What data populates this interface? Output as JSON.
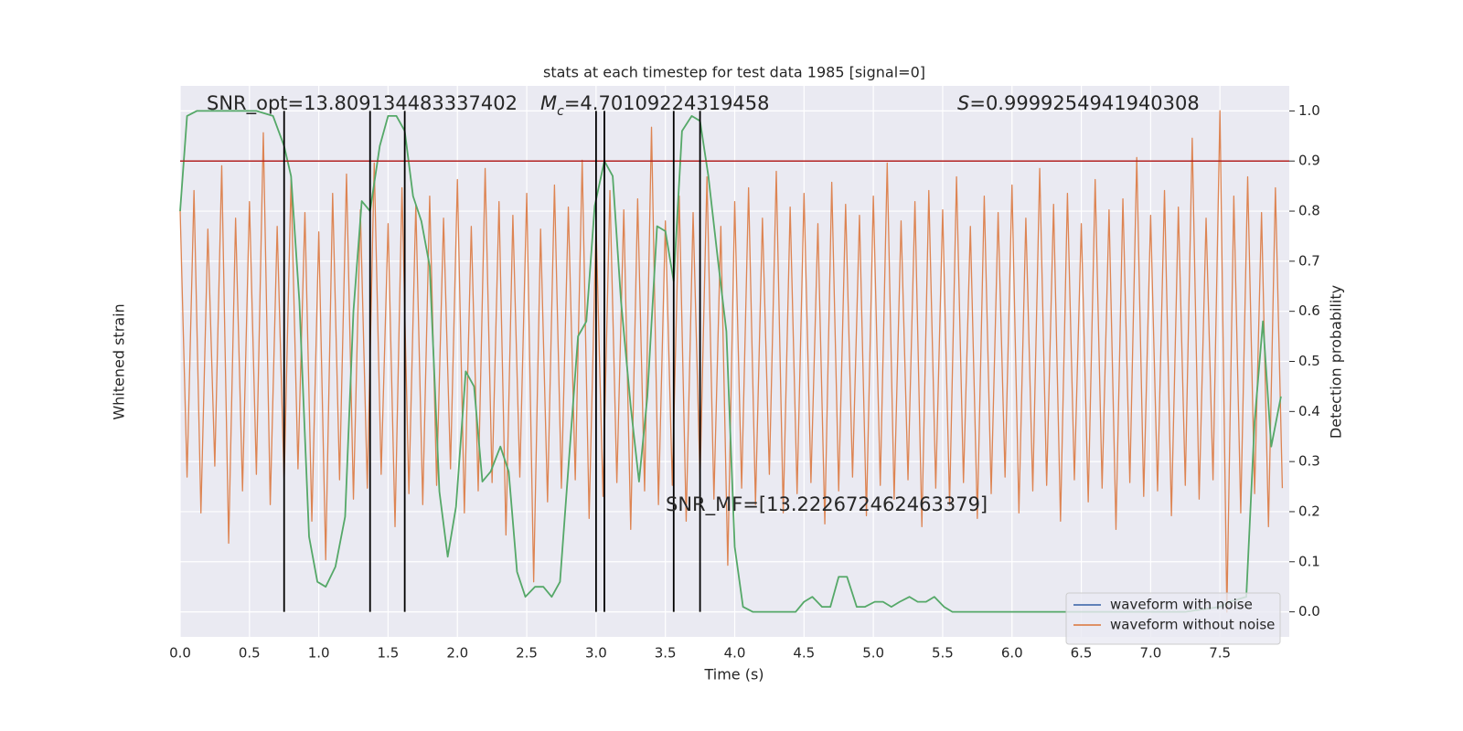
{
  "chart_data": {
    "type": "line",
    "title": "stats at each timestep for test data 1985 [signal=0]",
    "xlabel": "Time (s)",
    "ylabel": "Whitened strain",
    "y2label": "Detection probability",
    "xlim": [
      0,
      8
    ],
    "xticks": [
      {
        "value": 0,
        "label": "0.0"
      },
      0.5,
      {
        "value": 1,
        "label": "1.0"
      },
      1.5,
      {
        "value": 2,
        "label": "2.0"
      },
      2.5,
      {
        "value": 3,
        "label": "3.0"
      },
      3.5,
      {
        "value": 4,
        "label": "4.0"
      },
      4.5,
      {
        "value": 5,
        "label": "5.0"
      },
      5.5,
      {
        "value": 6,
        "label": "6.0"
      },
      6.5,
      {
        "value": 7,
        "label": "7.0"
      },
      7.5
    ],
    "ylim": [
      -1,
      1
    ],
    "y2lim": [
      -0.05,
      1.05
    ],
    "y2ticks": [
      {
        "value": 0,
        "label": "0.0"
      },
      0.1,
      0.2,
      0.3,
      0.4,
      0.5,
      0.6,
      0.7,
      0.8,
      0.9,
      {
        "value": 1,
        "label": "1.0"
      }
    ],
    "grid": true,
    "legend": "lower right",
    "series": [
      {
        "name": "waveform with noise",
        "color": "#4c72b0"
      },
      {
        "name": "waveform without noise",
        "color": "#dd8452",
        "axis": "y",
        "x": [
          0,
          0.05,
          0.1,
          0.15,
          0.2,
          0.25,
          0.3,
          0.35,
          0.4,
          0.45,
          0.5,
          0.55,
          0.6,
          0.65,
          0.7,
          0.75,
          0.8,
          0.85,
          0.9,
          0.95,
          1,
          1.05,
          1.1,
          1.15,
          1.2,
          1.25,
          1.3,
          1.35,
          1.4,
          1.45,
          1.5,
          1.55,
          1.6,
          1.65,
          1.7,
          1.75,
          1.8,
          1.85,
          1.9,
          1.95,
          2,
          2.05,
          2.1,
          2.15,
          2.2,
          2.25,
          2.3,
          2.35,
          2.4,
          2.45,
          2.5,
          2.55,
          2.6,
          2.65,
          2.7,
          2.75,
          2.8,
          2.85,
          2.9,
          2.95,
          3,
          3.05,
          3.1,
          3.15,
          3.2,
          3.25,
          3.3,
          3.35,
          3.4,
          3.45,
          3.5,
          3.55,
          3.6,
          3.65,
          3.7,
          3.75,
          3.8,
          3.85,
          3.9,
          3.95,
          4,
          4.05,
          4.1,
          4.15,
          4.2,
          4.25,
          4.3,
          4.35,
          4.4,
          4.45,
          4.5,
          4.55,
          4.6,
          4.65,
          4.7,
          4.75,
          4.8,
          4.85,
          4.9,
          4.95,
          5,
          5.05,
          5.1,
          5.15,
          5.2,
          5.25,
          5.3,
          5.35,
          5.4,
          5.45,
          5.5,
          5.55,
          5.6,
          5.65,
          5.7,
          5.75,
          5.8,
          5.85,
          5.9,
          5.95,
          6,
          6.05,
          6.1,
          6.15,
          6.2,
          6.25,
          6.3,
          6.35,
          6.4,
          6.45,
          6.5,
          6.55,
          6.6,
          6.65,
          6.7,
          6.75,
          6.8,
          6.85,
          6.9,
          6.95,
          7,
          7.05,
          7.1,
          7.15,
          7.2,
          7.25,
          7.3,
          7.35,
          7.4,
          7.45,
          7.5,
          7.55,
          7.6,
          7.65,
          7.7,
          7.75,
          7.8,
          7.85,
          7.9,
          7.95
        ],
        "values": [
          0.55,
          -0.42,
          0.62,
          -0.55,
          0.48,
          -0.38,
          0.71,
          -0.66,
          0.52,
          -0.47,
          0.58,
          -0.41,
          0.83,
          -0.52,
          0.49,
          -0.44,
          0.66,
          -0.39,
          0.54,
          -0.58,
          0.47,
          -0.72,
          0.61,
          -0.43,
          0.68,
          -0.5,
          0.55,
          -0.46,
          0.72,
          -0.41,
          0.5,
          -0.6,
          0.63,
          -0.48,
          0.57,
          -0.52,
          0.6,
          -0.45,
          0.52,
          -0.39,
          0.66,
          -0.55,
          0.49,
          -0.47,
          0.7,
          -0.44,
          0.58,
          -0.63,
          0.53,
          -0.42,
          0.61,
          -0.8,
          0.48,
          -0.51,
          0.64,
          -0.46,
          0.56,
          -0.43,
          0.73,
          -0.57,
          0.5,
          -0.49,
          0.62,
          -0.44,
          0.55,
          -0.61,
          0.59,
          -0.47,
          0.85,
          -0.52,
          0.51,
          -0.45,
          0.6,
          -0.58,
          0.54,
          -0.43,
          0.67,
          -0.5,
          0.49,
          -0.74,
          0.58,
          -0.46,
          0.63,
          -0.52,
          0.52,
          -0.41,
          0.69,
          -0.55,
          0.56,
          -0.48,
          0.61,
          -0.44,
          0.5,
          -0.59,
          0.65,
          -0.47,
          0.57,
          -0.42,
          0.53,
          -0.56,
          0.6,
          -0.45,
          0.72,
          -0.5,
          0.51,
          -0.43,
          0.58,
          -0.6,
          0.62,
          -0.46,
          0.55,
          -0.52,
          0.67,
          -0.44,
          0.49,
          -0.57,
          0.6,
          -0.48,
          0.54,
          -0.42,
          0.64,
          -0.55,
          0.52,
          -0.47,
          0.7,
          -0.45,
          0.57,
          -0.58,
          0.61,
          -0.43,
          0.5,
          -0.51,
          0.66,
          -0.46,
          0.55,
          -0.61,
          0.59,
          -0.44,
          0.74,
          -0.49,
          0.53,
          -0.47,
          0.62,
          -0.56,
          0.56,
          -0.45,
          0.81,
          -0.5,
          0.52,
          -0.43,
          0.91,
          -0.91,
          0.6,
          -0.55,
          0.67,
          -0.48,
          0.54,
          -0.6,
          0.63,
          -0.46
        ]
      },
      {
        "color": "#55a868",
        "axis": "y2",
        "x": [
          0,
          0.05,
          0.12,
          0.55,
          0.67,
          0.75,
          0.8,
          0.86,
          0.93,
          0.99,
          1.05,
          1.12,
          1.19,
          1.25,
          1.31,
          1.37,
          1.44,
          1.5,
          1.56,
          1.62,
          1.68,
          1.74,
          1.8,
          1.87,
          1.93,
          1.99,
          2.06,
          2.12,
          2.18,
          2.24,
          2.31,
          2.37,
          2.43,
          2.49,
          2.56,
          2.62,
          2.68,
          2.74,
          2.87,
          2.93,
          2.99,
          3.06,
          3.12,
          3.18,
          3.25,
          3.31,
          3.37,
          3.44,
          3.5,
          3.56,
          3.62,
          3.69,
          3.75,
          3.81,
          3.88,
          3.94,
          4,
          4.06,
          4.13,
          4.25,
          4.38,
          4.44,
          4.5,
          4.56,
          4.63,
          4.69,
          4.75,
          4.81,
          4.88,
          4.94,
          5.01,
          5.07,
          5.13,
          5.19,
          5.26,
          5.32,
          5.38,
          5.44,
          5.51,
          5.57,
          5.75,
          6,
          6.25,
          6.5,
          6.75,
          7,
          7.25,
          7.5,
          7.57,
          7.69,
          7.75,
          7.81,
          7.87,
          7.94
        ],
        "values": [
          0.8,
          0.99,
          1,
          1,
          0.99,
          0.93,
          0.87,
          0.62,
          0.15,
          0.06,
          0.05,
          0.09,
          0.19,
          0.6,
          0.82,
          0.8,
          0.93,
          0.99,
          0.99,
          0.96,
          0.83,
          0.78,
          0.69,
          0.24,
          0.11,
          0.21,
          0.48,
          0.45,
          0.26,
          0.28,
          0.33,
          0.28,
          0.08,
          0.03,
          0.05,
          0.05,
          0.03,
          0.06,
          0.55,
          0.58,
          0.81,
          0.9,
          0.87,
          0.62,
          0.41,
          0.26,
          0.43,
          0.77,
          0.76,
          0.66,
          0.96,
          0.99,
          0.98,
          0.87,
          0.7,
          0.56,
          0.13,
          0.01,
          0,
          0,
          0,
          0,
          0.02,
          0.03,
          0.01,
          0.01,
          0.07,
          0.07,
          0.01,
          0.01,
          0.02,
          0.02,
          0.01,
          0.02,
          0.03,
          0.02,
          0.02,
          0.03,
          0.01,
          0,
          0,
          0,
          0,
          0,
          0,
          0,
          0,
          0.01,
          0.02,
          0.03,
          0.38,
          0.58,
          0.33,
          0.43
        ]
      }
    ],
    "threshold": {
      "value": 0.9,
      "color": "#b22222",
      "axis": "y2"
    },
    "vlines": {
      "values": [
        0.75,
        1.37,
        1.62,
        3.0,
        3.06,
        3.56,
        3.75
      ],
      "span": [
        0,
        1
      ],
      "color": "#000000",
      "axis": "y2"
    },
    "annotations": [
      {
        "text": "SNR_opt=13.809134483337402"
      },
      {
        "symbol": "M",
        "subscript": "c",
        "text": "=4.70109224319458"
      },
      {
        "symbol": "S",
        "text": "=0.9999254941940308"
      },
      {
        "text": "SNR_MF=[13.222672462463379]"
      }
    ]
  }
}
